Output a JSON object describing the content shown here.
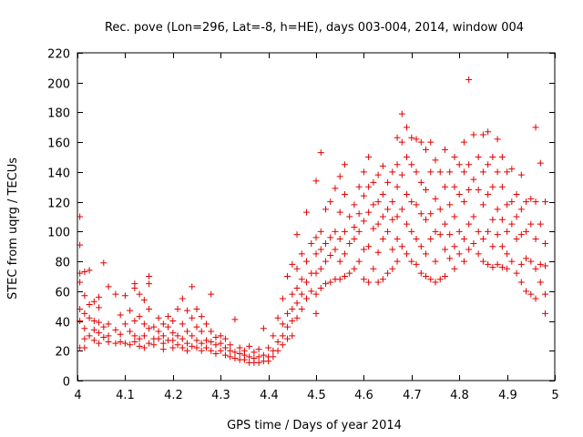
{
  "chart_data": {
    "type": "scatter",
    "title": "Rec. pove (Lon=296, Lat=-8, h=HE), days 003-004, 2014, window 004",
    "xlabel": "GPS time / Days of year 2014",
    "ylabel": "STEC from uqrg / TECUs",
    "xlim": [
      4,
      5
    ],
    "ylim": [
      0,
      220
    ],
    "xticks": [
      4,
      4.1,
      4.2,
      4.3,
      4.4,
      4.5,
      4.6,
      4.7,
      4.8,
      4.9,
      5
    ],
    "yticks": [
      0,
      20,
      40,
      60,
      80,
      100,
      120,
      140,
      160,
      180,
      200,
      220
    ],
    "xtick_labels": [
      "4",
      "4.1",
      "4.2",
      "4.3",
      "4.4",
      "4.5",
      "4.6",
      "4.7",
      "4.8",
      "4.9",
      "5"
    ],
    "ytick_labels": [
      "0",
      "20",
      "40",
      "60",
      "80",
      "100",
      "120",
      "140",
      "160",
      "180",
      "200",
      "220"
    ],
    "grid": false,
    "marker": "plus",
    "color": "#e00000",
    "points": [
      [
        4.005,
        110
      ],
      [
        4.005,
        91
      ],
      [
        4.005,
        72
      ],
      [
        4.005,
        66
      ],
      [
        4.005,
        48
      ],
      [
        4.005,
        40
      ],
      [
        4.005,
        22
      ],
      [
        4.015,
        73
      ],
      [
        4.015,
        57
      ],
      [
        4.015,
        45
      ],
      [
        4.015,
        35
      ],
      [
        4.015,
        28
      ],
      [
        4.015,
        22
      ],
      [
        4.025,
        74
      ],
      [
        4.025,
        51
      ],
      [
        4.025,
        42
      ],
      [
        4.025,
        30
      ],
      [
        4.035,
        53
      ],
      [
        4.035,
        40
      ],
      [
        4.035,
        34
      ],
      [
        4.035,
        27
      ],
      [
        4.045,
        56
      ],
      [
        4.045,
        49
      ],
      [
        4.045,
        39
      ],
      [
        4.045,
        32
      ],
      [
        4.045,
        25
      ],
      [
        4.055,
        79
      ],
      [
        4.055,
        36
      ],
      [
        4.055,
        29
      ],
      [
        4.065,
        63
      ],
      [
        4.065,
        38
      ],
      [
        4.065,
        30
      ],
      [
        4.065,
        26
      ],
      [
        4.08,
        58
      ],
      [
        4.08,
        34
      ],
      [
        4.08,
        25
      ],
      [
        4.09,
        44
      ],
      [
        4.09,
        31
      ],
      [
        4.09,
        26
      ],
      [
        4.1,
        57
      ],
      [
        4.1,
        38
      ],
      [
        4.1,
        25
      ],
      [
        4.11,
        47
      ],
      [
        4.11,
        33
      ],
      [
        4.11,
        24
      ],
      [
        4.12,
        65
      ],
      [
        4.12,
        62
      ],
      [
        4.12,
        40
      ],
      [
        4.12,
        30
      ],
      [
        4.12,
        26
      ],
      [
        4.13,
        58
      ],
      [
        4.13,
        43
      ],
      [
        4.13,
        28
      ],
      [
        4.13,
        23
      ],
      [
        4.14,
        54
      ],
      [
        4.14,
        38
      ],
      [
        4.14,
        30
      ],
      [
        4.14,
        22
      ],
      [
        4.15,
        70
      ],
      [
        4.15,
        65
      ],
      [
        4.15,
        48
      ],
      [
        4.15,
        35
      ],
      [
        4.15,
        25
      ],
      [
        4.16,
        36
      ],
      [
        4.16,
        28
      ],
      [
        4.16,
        24
      ],
      [
        4.17,
        42
      ],
      [
        4.17,
        33
      ],
      [
        4.17,
        28
      ],
      [
        4.18,
        38
      ],
      [
        4.18,
        30
      ],
      [
        4.18,
        25
      ],
      [
        4.18,
        21
      ],
      [
        4.19,
        43
      ],
      [
        4.19,
        36
      ],
      [
        4.19,
        27
      ],
      [
        4.2,
        40
      ],
      [
        4.2,
        32
      ],
      [
        4.2,
        27
      ],
      [
        4.2,
        22
      ],
      [
        4.21,
        48
      ],
      [
        4.21,
        30
      ],
      [
        4.21,
        24
      ],
      [
        4.22,
        55
      ],
      [
        4.22,
        38
      ],
      [
        4.22,
        28
      ],
      [
        4.22,
        22
      ],
      [
        4.23,
        47
      ],
      [
        4.23,
        33
      ],
      [
        4.23,
        25
      ],
      [
        4.23,
        20
      ],
      [
        4.24,
        63
      ],
      [
        4.24,
        42
      ],
      [
        4.24,
        30
      ],
      [
        4.24,
        23
      ],
      [
        4.25,
        48
      ],
      [
        4.25,
        36
      ],
      [
        4.25,
        27
      ],
      [
        4.25,
        22
      ],
      [
        4.26,
        43
      ],
      [
        4.26,
        33
      ],
      [
        4.26,
        25
      ],
      [
        4.26,
        20
      ],
      [
        4.27,
        38
      ],
      [
        4.27,
        27
      ],
      [
        4.27,
        22
      ],
      [
        4.28,
        58
      ],
      [
        4.28,
        33
      ],
      [
        4.28,
        26
      ],
      [
        4.28,
        20
      ],
      [
        4.29,
        29
      ],
      [
        4.29,
        24
      ],
      [
        4.29,
        18
      ],
      [
        4.3,
        30
      ],
      [
        4.3,
        25
      ],
      [
        4.3,
        20
      ],
      [
        4.31,
        28
      ],
      [
        4.31,
        22
      ],
      [
        4.31,
        17
      ],
      [
        4.32,
        24
      ],
      [
        4.32,
        20
      ],
      [
        4.32,
        16
      ],
      [
        4.33,
        41
      ],
      [
        4.33,
        19
      ],
      [
        4.33,
        15
      ],
      [
        4.34,
        22
      ],
      [
        4.34,
        18
      ],
      [
        4.34,
        14
      ],
      [
        4.35,
        20
      ],
      [
        4.35,
        17
      ],
      [
        4.35,
        14
      ],
      [
        4.36,
        23
      ],
      [
        4.36,
        16
      ],
      [
        4.36,
        12
      ],
      [
        4.37,
        19
      ],
      [
        4.37,
        15
      ],
      [
        4.37,
        12
      ],
      [
        4.38,
        21
      ],
      [
        4.38,
        16
      ],
      [
        4.38,
        12
      ],
      [
        4.39,
        35
      ],
      [
        4.39,
        17
      ],
      [
        4.39,
        13
      ],
      [
        4.4,
        22
      ],
      [
        4.4,
        16
      ],
      [
        4.4,
        13
      ],
      [
        4.41,
        30
      ],
      [
        4.41,
        20
      ],
      [
        4.41,
        16
      ],
      [
        4.42,
        42
      ],
      [
        4.42,
        26
      ],
      [
        4.42,
        20
      ],
      [
        4.43,
        55
      ],
      [
        4.43,
        38
      ],
      [
        4.43,
        30
      ],
      [
        4.43,
        24
      ],
      [
        4.44,
        70
      ],
      [
        4.44,
        45
      ],
      [
        4.44,
        36
      ],
      [
        4.44,
        28
      ],
      [
        4.45,
        78
      ],
      [
        4.45,
        58
      ],
      [
        4.45,
        48
      ],
      [
        4.45,
        40
      ],
      [
        4.45,
        30
      ],
      [
        4.46,
        98
      ],
      [
        4.46,
        75
      ],
      [
        4.46,
        62
      ],
      [
        4.46,
        52
      ],
      [
        4.46,
        42
      ],
      [
        4.47,
        85
      ],
      [
        4.47,
        68
      ],
      [
        4.47,
        58
      ],
      [
        4.47,
        48
      ],
      [
        4.48,
        113
      ],
      [
        4.48,
        80
      ],
      [
        4.48,
        66
      ],
      [
        4.48,
        55
      ],
      [
        4.49,
        92
      ],
      [
        4.49,
        72
      ],
      [
        4.49,
        60
      ],
      [
        4.5,
        134
      ],
      [
        4.5,
        96
      ],
      [
        4.5,
        85
      ],
      [
        4.5,
        72
      ],
      [
        4.5,
        58
      ],
      [
        4.5,
        45
      ],
      [
        4.51,
        153
      ],
      [
        4.51,
        100
      ],
      [
        4.51,
        88
      ],
      [
        4.51,
        75
      ],
      [
        4.51,
        62
      ],
      [
        4.52,
        115
      ],
      [
        4.52,
        92
      ],
      [
        4.52,
        80
      ],
      [
        4.52,
        65
      ],
      [
        4.53,
        120
      ],
      [
        4.53,
        96
      ],
      [
        4.53,
        84
      ],
      [
        4.53,
        66
      ],
      [
        4.54,
        129
      ],
      [
        4.54,
        100
      ],
      [
        4.54,
        88
      ],
      [
        4.54,
        68
      ],
      [
        4.55,
        137
      ],
      [
        4.55,
        113
      ],
      [
        4.55,
        95
      ],
      [
        4.55,
        80
      ],
      [
        4.55,
        68
      ],
      [
        4.56,
        145
      ],
      [
        4.56,
        125
      ],
      [
        4.56,
        100
      ],
      [
        4.56,
        85
      ],
      [
        4.56,
        70
      ],
      [
        4.57,
        110
      ],
      [
        4.57,
        92
      ],
      [
        4.57,
        72
      ],
      [
        4.58,
        118
      ],
      [
        4.58,
        103
      ],
      [
        4.58,
        95
      ],
      [
        4.58,
        75
      ],
      [
        4.59,
        130
      ],
      [
        4.59,
        112
      ],
      [
        4.59,
        100
      ],
      [
        4.59,
        80
      ],
      [
        4.6,
        140
      ],
      [
        4.6,
        124
      ],
      [
        4.6,
        107
      ],
      [
        4.6,
        88
      ],
      [
        4.6,
        68
      ],
      [
        4.61,
        150
      ],
      [
        4.61,
        130
      ],
      [
        4.61,
        113
      ],
      [
        4.61,
        90
      ],
      [
        4.61,
        66
      ],
      [
        4.62,
        133
      ],
      [
        4.62,
        118
      ],
      [
        4.62,
        102
      ],
      [
        4.62,
        75
      ],
      [
        4.63,
        138
      ],
      [
        4.63,
        120
      ],
      [
        4.63,
        105
      ],
      [
        4.63,
        86
      ],
      [
        4.63,
        66
      ],
      [
        4.64,
        144
      ],
      [
        4.64,
        125
      ],
      [
        4.64,
        110
      ],
      [
        4.64,
        95
      ],
      [
        4.64,
        68
      ],
      [
        4.65,
        133
      ],
      [
        4.65,
        115
      ],
      [
        4.65,
        100
      ],
      [
        4.65,
        72
      ],
      [
        4.66,
        140
      ],
      [
        4.66,
        120
      ],
      [
        4.66,
        108
      ],
      [
        4.66,
        88
      ],
      [
        4.66,
        75
      ],
      [
        4.67,
        163
      ],
      [
        4.67,
        145
      ],
      [
        4.67,
        130
      ],
      [
        4.67,
        110
      ],
      [
        4.67,
        95
      ],
      [
        4.67,
        80
      ],
      [
        4.68,
        179
      ],
      [
        4.68,
        160
      ],
      [
        4.68,
        138
      ],
      [
        4.68,
        115
      ],
      [
        4.68,
        90
      ],
      [
        4.69,
        170
      ],
      [
        4.69,
        150
      ],
      [
        4.69,
        125
      ],
      [
        4.69,
        105
      ],
      [
        4.69,
        85
      ],
      [
        4.7,
        163
      ],
      [
        4.7,
        145
      ],
      [
        4.7,
        120
      ],
      [
        4.7,
        100
      ],
      [
        4.7,
        80
      ],
      [
        4.71,
        162
      ],
      [
        4.71,
        140
      ],
      [
        4.71,
        118
      ],
      [
        4.71,
        95
      ],
      [
        4.71,
        78
      ],
      [
        4.72,
        160
      ],
      [
        4.72,
        133
      ],
      [
        4.72,
        112
      ],
      [
        4.72,
        90
      ],
      [
        4.72,
        72
      ],
      [
        4.73,
        155
      ],
      [
        4.73,
        128
      ],
      [
        4.73,
        108
      ],
      [
        4.73,
        85
      ],
      [
        4.73,
        70
      ],
      [
        4.74,
        160
      ],
      [
        4.74,
        140
      ],
      [
        4.74,
        112
      ],
      [
        4.74,
        95
      ],
      [
        4.74,
        68
      ],
      [
        4.75,
        148
      ],
      [
        4.75,
        122
      ],
      [
        4.75,
        100
      ],
      [
        4.75,
        80
      ],
      [
        4.75,
        66
      ],
      [
        4.76,
        140
      ],
      [
        4.76,
        115
      ],
      [
        4.76,
        98
      ],
      [
        4.76,
        68
      ],
      [
        4.77,
        155
      ],
      [
        4.77,
        130
      ],
      [
        4.77,
        105
      ],
      [
        4.77,
        88
      ],
      [
        4.77,
        70
      ],
      [
        4.78,
        140
      ],
      [
        4.78,
        118
      ],
      [
        4.78,
        98
      ],
      [
        4.78,
        82
      ],
      [
        4.79,
        150
      ],
      [
        4.79,
        130
      ],
      [
        4.79,
        110
      ],
      [
        4.79,
        90
      ],
      [
        4.79,
        75
      ],
      [
        4.8,
        145
      ],
      [
        4.8,
        125
      ],
      [
        4.8,
        100
      ],
      [
        4.8,
        85
      ],
      [
        4.81,
        160
      ],
      [
        4.81,
        140
      ],
      [
        4.81,
        120
      ],
      [
        4.81,
        95
      ],
      [
        4.81,
        80
      ],
      [
        4.82,
        202
      ],
      [
        4.82,
        145
      ],
      [
        4.82,
        128
      ],
      [
        4.82,
        105
      ],
      [
        4.82,
        88
      ],
      [
        4.83,
        165
      ],
      [
        4.83,
        135
      ],
      [
        4.83,
        110
      ],
      [
        4.83,
        92
      ],
      [
        4.84,
        150
      ],
      [
        4.84,
        128
      ],
      [
        4.84,
        100
      ],
      [
        4.84,
        85
      ],
      [
        4.85,
        165
      ],
      [
        4.85,
        140
      ],
      [
        4.85,
        118
      ],
      [
        4.85,
        95
      ],
      [
        4.85,
        80
      ],
      [
        4.86,
        167
      ],
      [
        4.86,
        145
      ],
      [
        4.86,
        125
      ],
      [
        4.86,
        100
      ],
      [
        4.86,
        78
      ],
      [
        4.87,
        150
      ],
      [
        4.87,
        130
      ],
      [
        4.87,
        108
      ],
      [
        4.87,
        90
      ],
      [
        4.87,
        76
      ],
      [
        4.88,
        162
      ],
      [
        4.88,
        140
      ],
      [
        4.88,
        115
      ],
      [
        4.88,
        98
      ],
      [
        4.88,
        78
      ],
      [
        4.89,
        150
      ],
      [
        4.89,
        130
      ],
      [
        4.89,
        108
      ],
      [
        4.89,
        90
      ],
      [
        4.89,
        76
      ],
      [
        4.9,
        140
      ],
      [
        4.9,
        118
      ],
      [
        4.9,
        100
      ],
      [
        4.9,
        85
      ],
      [
        4.9,
        75
      ],
      [
        4.91,
        142
      ],
      [
        4.91,
        120
      ],
      [
        4.91,
        105
      ],
      [
        4.91,
        80
      ],
      [
        4.92,
        125
      ],
      [
        4.92,
        110
      ],
      [
        4.92,
        95
      ],
      [
        4.92,
        72
      ],
      [
        4.93,
        138
      ],
      [
        4.93,
        115
      ],
      [
        4.93,
        98
      ],
      [
        4.93,
        78
      ],
      [
        4.93,
        66
      ],
      [
        4.94,
        120
      ],
      [
        4.94,
        100
      ],
      [
        4.94,
        82
      ],
      [
        4.94,
        60
      ],
      [
        4.95,
        122
      ],
      [
        4.95,
        105
      ],
      [
        4.95,
        80
      ],
      [
        4.95,
        58
      ],
      [
        4.96,
        170
      ],
      [
        4.96,
        120
      ],
      [
        4.96,
        95
      ],
      [
        4.96,
        75
      ],
      [
        4.96,
        55
      ],
      [
        4.97,
        146
      ],
      [
        4.97,
        105
      ],
      [
        4.97,
        78
      ],
      [
        4.97,
        66
      ],
      [
        4.98,
        120
      ],
      [
        4.98,
        92
      ],
      [
        4.98,
        77
      ],
      [
        4.98,
        58
      ],
      [
        4.98,
        45
      ]
    ]
  }
}
